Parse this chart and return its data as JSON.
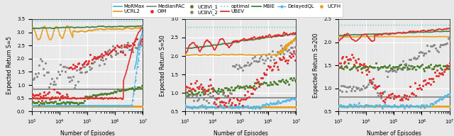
{
  "fig_bg": "#e8e8e8",
  "ax_bg": "#e8e8e8",
  "subplots": [
    {
      "ylabel": "Expected Return S=5",
      "xlabel": "Number of Episodes",
      "xlim": [
        1000.0,
        10000000.0
      ],
      "ylim": [
        0.0,
        3.5
      ],
      "yticks": [
        0.0,
        0.5,
        1.0,
        1.5,
        2.0,
        2.5,
        3.0,
        3.5
      ],
      "optimal_y": 3.45
    },
    {
      "ylabel": "Expected Return S=50",
      "xlabel": "Number of Episodes",
      "xlim": [
        1000.0,
        10000000.0
      ],
      "ylim": [
        0.5,
        3.0
      ],
      "yticks": [
        0.5,
        1.0,
        1.5,
        2.0,
        2.5,
        3.0
      ],
      "optimal_y": 2.78
    },
    {
      "ylabel": "Expected Return S=200",
      "xlabel": "Number of Episodes",
      "xlim": [
        1000.0,
        10000000.0
      ],
      "ylim": [
        0.5,
        2.5
      ],
      "yticks": [
        0.5,
        1.0,
        1.5,
        2.0,
        2.5
      ],
      "optimal_y": 2.38
    }
  ]
}
